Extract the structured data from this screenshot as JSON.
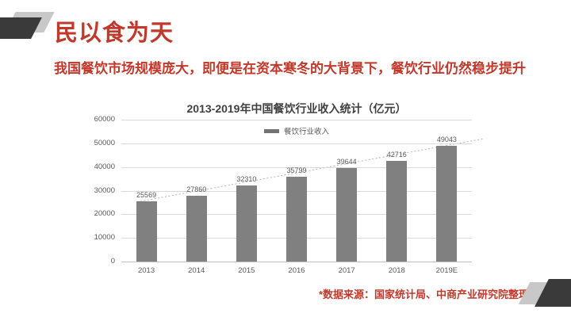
{
  "slide": {
    "title": "民以食为天",
    "subtitle": "我国餐饮市场规模庞大，即便是在资本寒冬的大背景下，餐饮行业仍然稳步提升",
    "footnote": "*数据来源：国家统计局、中商产业研究院整理"
  },
  "colors": {
    "accent_red": "#c0392b",
    "bar_fill": "#808080",
    "chart_title_text": "#404040",
    "axis_text": "#595959",
    "gridline": "#d9d9d9",
    "axis_line": "#bfbfbf",
    "trendline": "#b3b3b3",
    "legend_swatch": "#737373",
    "deco_dark": "#3a3a3a",
    "deco_light": "#c8c8c8"
  },
  "chart_data": {
    "type": "bar",
    "title": "2013-2019年中国餐饮行业收入统计（亿元）",
    "categories": [
      "2013",
      "2014",
      "2015",
      "2016",
      "2017",
      "2018",
      "2019E"
    ],
    "series": [
      {
        "name": "餐饮行业收入",
        "values": [
          25569,
          27860,
          32310,
          35799,
          39644,
          42716,
          49043
        ]
      }
    ],
    "xlabel": "",
    "ylabel": "",
    "ylim": [
      0,
      60000
    ],
    "ytick_step": 10000,
    "ytick_labels": [
      "0",
      "10000",
      "20000",
      "30000",
      "40000",
      "50000",
      "60000"
    ],
    "grid": true,
    "legend_position": "top-center",
    "data_labels": true,
    "trendline": "linear-dotted"
  }
}
